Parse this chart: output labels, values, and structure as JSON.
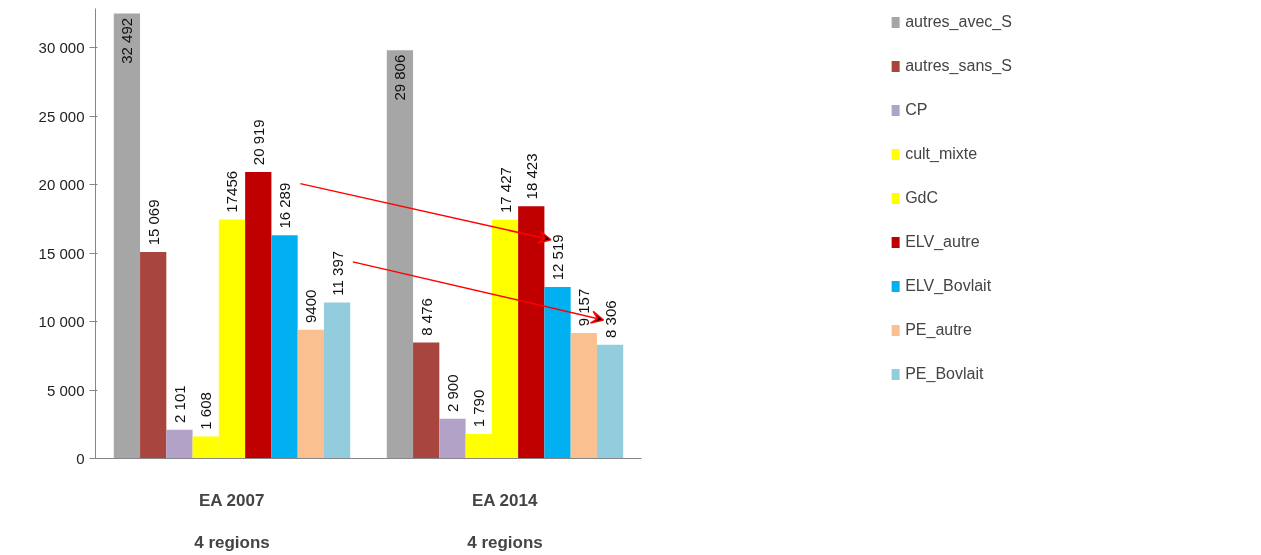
{
  "chart_data": {
    "type": "bar",
    "categories": [
      "EA 2007",
      "EA 2014"
    ],
    "annotations": [
      "4 regions",
      "4 regions"
    ],
    "series": [
      {
        "name": "autres_avec_S",
        "color": "#a6a6a6",
        "values": [
          32492,
          29806
        ],
        "value_labels": [
          "32 492",
          "29 806"
        ]
      },
      {
        "name": "autres_sans_S",
        "color": "#a9453f",
        "values": [
          15069,
          8476
        ],
        "value_labels": [
          "15 069",
          "8 476"
        ]
      },
      {
        "name": "CP",
        "color": "#b3a2c7",
        "values": [
          2101,
          2900
        ],
        "value_labels": [
          "2 101",
          "2 900"
        ]
      },
      {
        "name": "cult_mixte",
        "color": "#ffff00",
        "values": [
          1608,
          1790
        ],
        "value_labels": [
          "1 608",
          "1 790"
        ]
      },
      {
        "name": "GdC",
        "color": "#ffff00",
        "values": [
          17456,
          17427
        ],
        "value_labels": [
          "17456",
          "17 427"
        ]
      },
      {
        "name": "ELV_autre",
        "color": "#c00000",
        "values": [
          20919,
          18423
        ],
        "value_labels": [
          "20 919",
          "18 423"
        ]
      },
      {
        "name": "ELV_Bovlait",
        "color": "#00b0f0",
        "values": [
          16289,
          12519
        ],
        "value_labels": [
          "16 289",
          "12 519"
        ]
      },
      {
        "name": "PE_autre",
        "color": "#fac090",
        "values": [
          9400,
          9157
        ],
        "value_labels": [
          "9400",
          "9 157"
        ]
      },
      {
        "name": "PE_Bovlait",
        "color": "#93cddd",
        "values": [
          11397,
          8306
        ],
        "value_labels": [
          "11 397",
          "8 306"
        ]
      }
    ],
    "ylim": [
      0,
      32850
    ],
    "yticks": [
      {
        "value": 0,
        "label": "0"
      },
      {
        "value": 5000,
        "label": "5 000"
      },
      {
        "value": 10000,
        "label": "10 000"
      },
      {
        "value": 15000,
        "label": "15 000"
      },
      {
        "value": 20000,
        "label": "20 000"
      },
      {
        "value": 25000,
        "label": "25 000"
      },
      {
        "value": 30000,
        "label": "30 000"
      }
    ],
    "grid": false,
    "legend": "right"
  }
}
